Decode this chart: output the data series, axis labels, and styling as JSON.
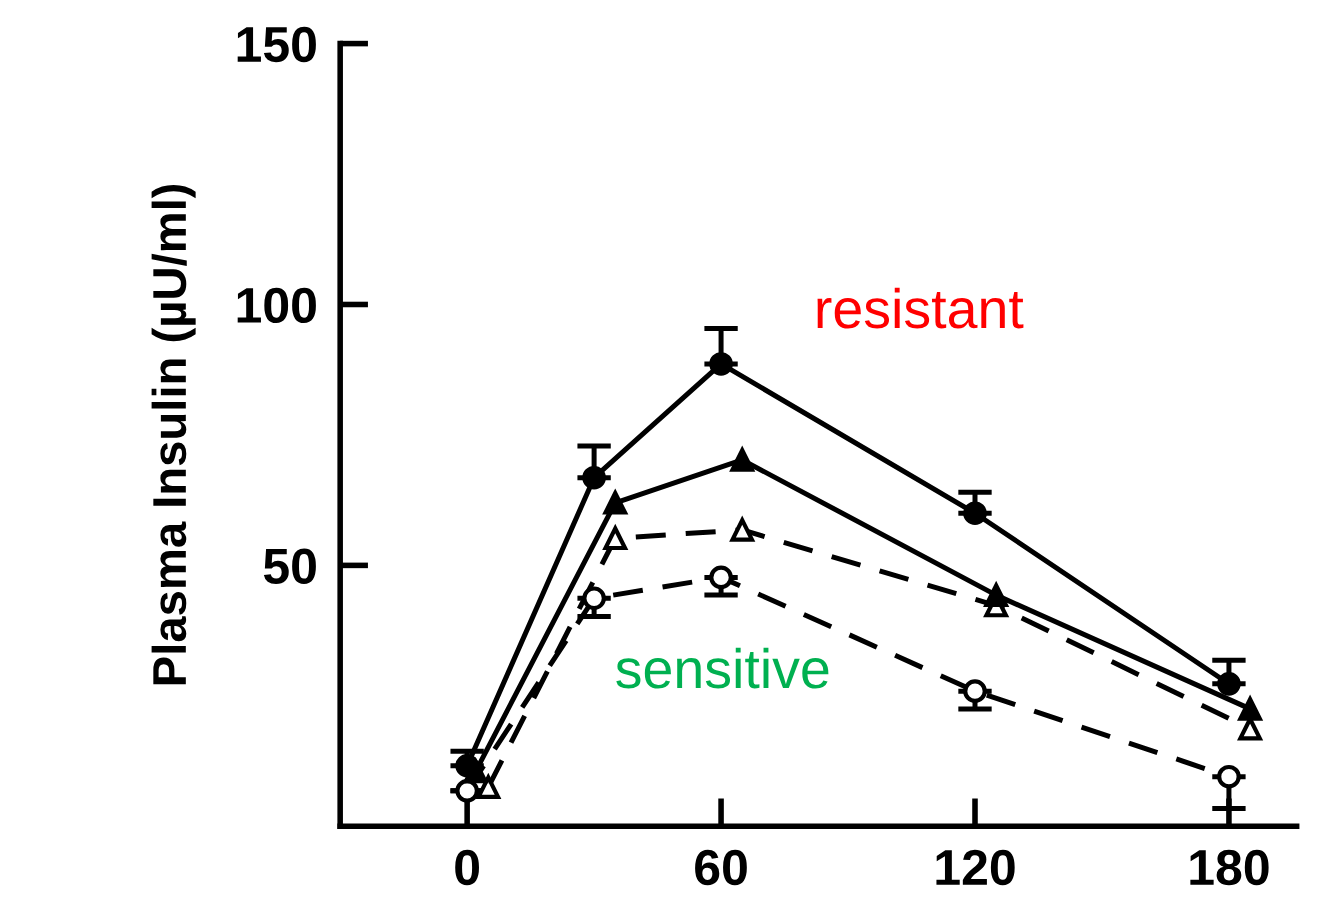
{
  "chart_data": {
    "type": "line",
    "ylabel": "Plasma Insulin (µU/ml)",
    "series": [
      {
        "color": "#000000",
        "marker": "circle",
        "line_style": "solid",
        "x": [
          0,
          30,
          60,
          120,
          180
        ],
        "values": [
          11.6,
          66.8,
          88.6,
          60,
          27.3
        ],
        "errors": [
          [
            11.6,
            14.4
          ],
          [
            66.8,
            72.9
          ],
          [
            88.6,
            95.4
          ],
          [
            60,
            64
          ],
          [
            27.3,
            31.8
          ]
        ]
      },
      {
        "color": "#000000",
        "marker": "triangle",
        "line_style": "solid",
        "x": [
          2,
          35,
          65,
          125,
          185
        ],
        "values": [
          10.5,
          62,
          70.2,
          44.3,
          22.5
        ]
      },
      {
        "color": "#000000",
        "marker": "triangle",
        "line_style": "dashed",
        "x": [
          5,
          35,
          65,
          125,
          185
        ],
        "values": [
          7.5,
          55.2,
          56.8,
          42.3,
          18.7
        ]
      },
      {
        "color": "#000000",
        "marker": "circle",
        "line_style": "dashed",
        "x": [
          0,
          30,
          60,
          120,
          180
        ],
        "values": [
          6.8,
          43.7,
          47.7,
          25.9,
          9.5
        ],
        "errors": [
          [
            6.8,
            6.8
          ],
          [
            40.2,
            43.7
          ],
          [
            44.3,
            47.7
          ],
          [
            22.5,
            25.9
          ],
          [
            3.4,
            9.5
          ]
        ]
      }
    ],
    "xlim": [
      -30,
      196
    ],
    "ylim": [
      0,
      150
    ],
    "xticks": [
      0,
      60,
      120,
      180
    ],
    "yticks": [
      50,
      100,
      150
    ],
    "grid": false,
    "legend": false,
    "annotations": [
      "resistant",
      "sensitive"
    ]
  }
}
